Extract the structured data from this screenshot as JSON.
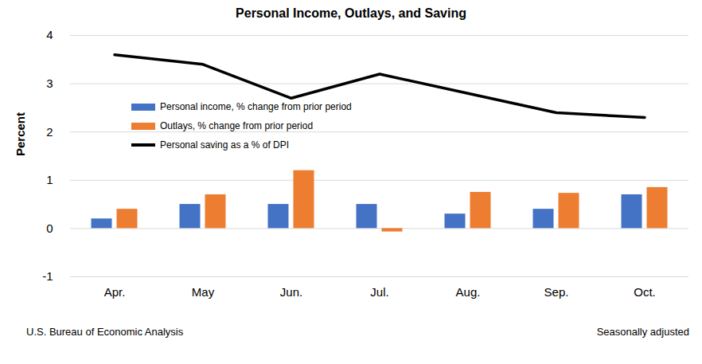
{
  "chart_data": {
    "type": "bar",
    "title": "Personal Income, Outlays, and Saving",
    "y_label": "Percent",
    "annotations": [
      "U.S. Bureau of Economic Analysis",
      "Seasonally adjusted"
    ],
    "categories": [
      "Apr.",
      "May",
      "Jun.",
      "Jul.",
      "Aug.",
      "Sep.",
      "Oct."
    ],
    "series": [
      {
        "name": "Personal income, % change from prior period",
        "type": "bar",
        "color": "#4472C4",
        "values": [
          0.2,
          0.5,
          0.5,
          0.5,
          0.3,
          0.4,
          0.7
        ]
      },
      {
        "name": "Outlays, % change from prior period",
        "type": "bar",
        "color": "#ED7D31",
        "values": [
          0.4,
          0.7,
          1.2,
          -0.07,
          0.75,
          0.73,
          0.85
        ]
      },
      {
        "name": "Personal saving as a % of DPI",
        "type": "line",
        "color": "#000000",
        "values": [
          3.6,
          3.4,
          2.7,
          3.2,
          2.8,
          2.4,
          2.3
        ]
      }
    ],
    "ylim": [
      -1,
      4
    ],
    "yticks": [
      -1,
      0,
      1,
      2,
      3,
      4
    ],
    "grid": true,
    "legend": "left"
  }
}
